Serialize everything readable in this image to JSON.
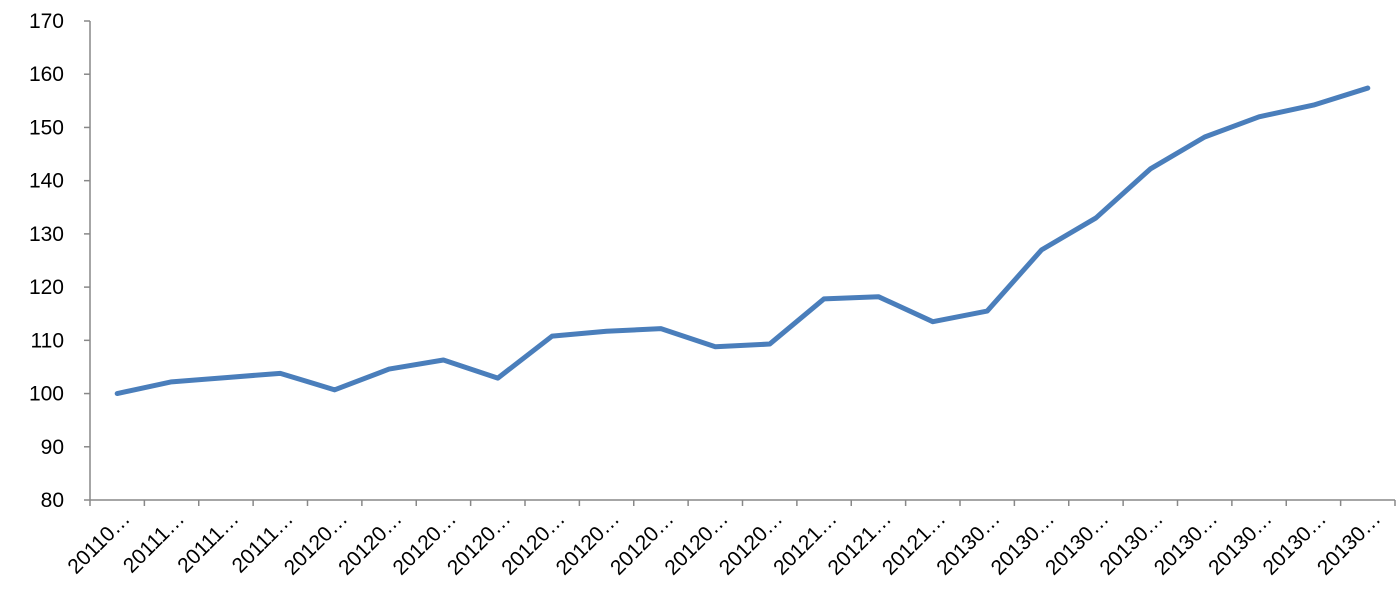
{
  "chart_data": {
    "type": "line",
    "categories": [
      "20110…",
      "20111…",
      "20111…",
      "20111…",
      "20120…",
      "20120…",
      "20120…",
      "20120…",
      "20120…",
      "20120…",
      "20120…",
      "20120…",
      "20120…",
      "20121…",
      "20121…",
      "20121…",
      "20130…",
      "20130…",
      "20130…",
      "20130…",
      "20130…",
      "20130…",
      "20130…",
      "20130…"
    ],
    "series": [
      {
        "color": "#4a7ebb",
        "values": [
          100,
          102.2,
          103,
          103.8,
          100.7,
          104.6,
          106.3,
          102.9,
          110.8,
          111.7,
          112.2,
          108.8,
          109.3,
          117.8,
          118.2,
          113.5,
          115.5,
          127,
          133,
          142.2,
          148.2,
          152,
          154.2,
          157.4
        ]
      }
    ],
    "ylim": [
      80,
      170
    ],
    "yticks": [
      80,
      90,
      100,
      110,
      120,
      130,
      140,
      150,
      160,
      170
    ],
    "grid": false
  }
}
